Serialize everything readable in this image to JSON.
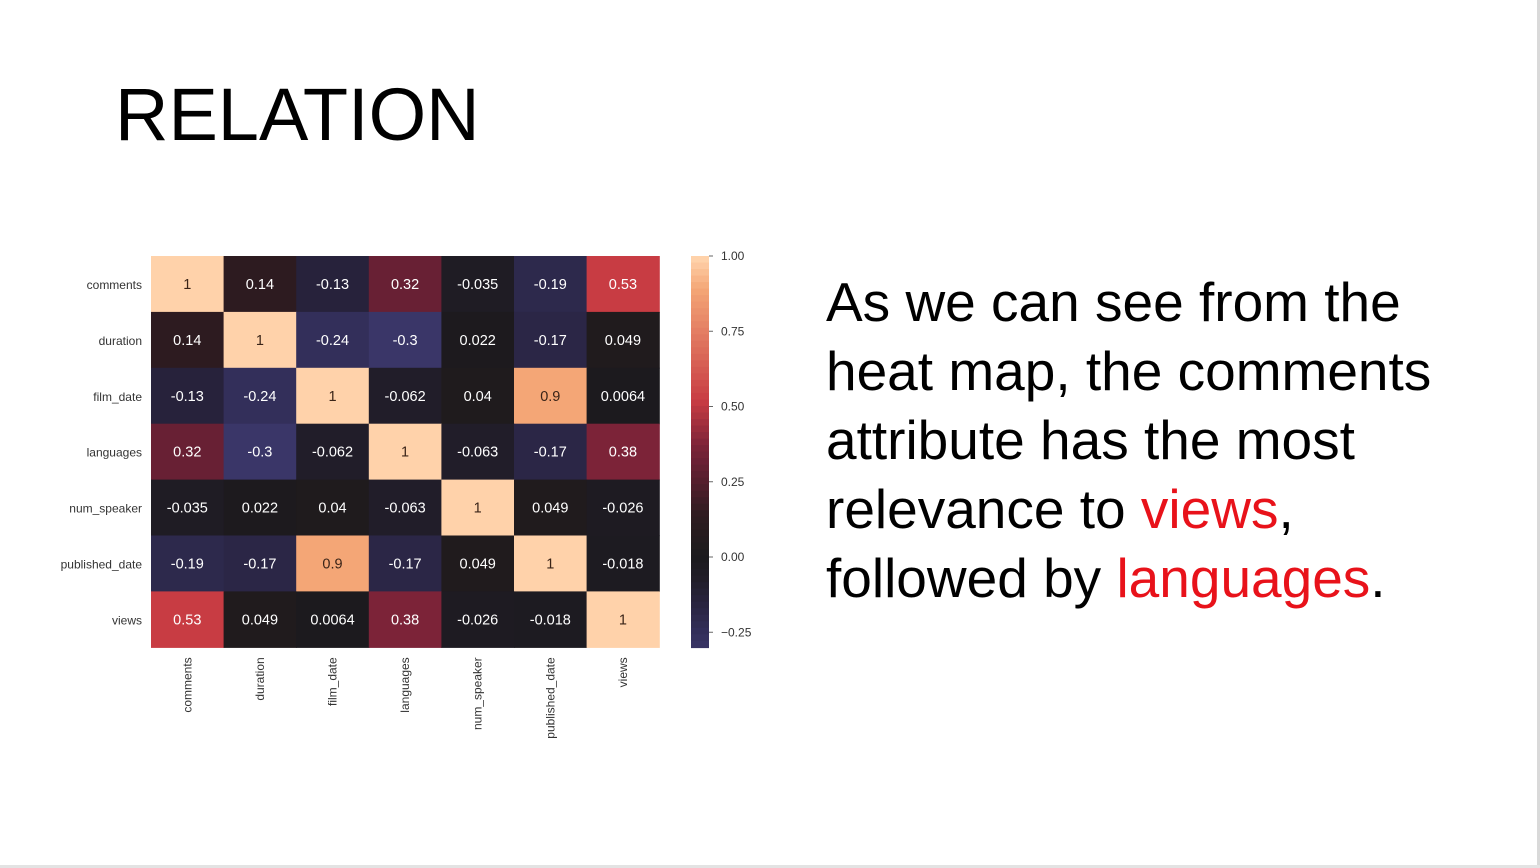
{
  "slide": {
    "title": "RELATION",
    "body": {
      "part1": "As we can see from the heat map, the comments attribute has the most relevance to ",
      "hl1": "views",
      "part2": ", followed by ",
      "hl2": "languages",
      "part3": ".",
      "highlight_color": "#e8121a"
    }
  },
  "chart_data": {
    "type": "heatmap",
    "variables": [
      "comments",
      "duration",
      "film_date",
      "languages",
      "num_speaker",
      "published_date",
      "views"
    ],
    "row_labels": [
      "comments",
      "duration",
      "film_date",
      "languages",
      "num_speaker",
      "published_date",
      "views"
    ],
    "col_labels": [
      "comments",
      "duration",
      "film_date",
      "languages",
      "num_speaker",
      "published_date",
      "views"
    ],
    "values": [
      [
        1,
        0.14,
        -0.13,
        0.32,
        -0.035,
        -0.19,
        0.53
      ],
      [
        0.14,
        1,
        -0.24,
        -0.3,
        0.022,
        -0.17,
        0.049
      ],
      [
        -0.13,
        -0.24,
        1,
        -0.062,
        0.04,
        0.9,
        0.0064
      ],
      [
        0.32,
        -0.3,
        -0.062,
        1,
        -0.063,
        -0.17,
        0.38
      ],
      [
        -0.035,
        0.022,
        0.04,
        -0.063,
        1,
        0.049,
        -0.026
      ],
      [
        -0.19,
        -0.17,
        0.9,
        -0.17,
        0.049,
        1,
        -0.018
      ],
      [
        0.53,
        0.049,
        0.0064,
        0.38,
        -0.026,
        -0.018,
        1
      ]
    ],
    "annotations": [
      [
        "1",
        "0.14",
        "-0.13",
        "0.32",
        "-0.035",
        "-0.19",
        "0.53"
      ],
      [
        "0.14",
        "1",
        "-0.24",
        "-0.3",
        "0.022",
        "-0.17",
        "0.049"
      ],
      [
        "-0.13",
        "-0.24",
        "1",
        "-0.062",
        "0.04",
        "0.9",
        "0.0064"
      ],
      [
        "0.32",
        "-0.3",
        "-0.062",
        "1",
        "-0.063",
        "-0.17",
        "0.38"
      ],
      [
        "-0.035",
        "0.022",
        "0.04",
        "-0.063",
        "1",
        "0.049",
        "-0.026"
      ],
      [
        "-0.19",
        "-0.17",
        "0.9",
        "-0.17",
        "0.049",
        "1",
        "-0.018"
      ],
      [
        "0.53",
        "0.049",
        "0.0064",
        "0.38",
        "-0.026",
        "-0.018",
        "1"
      ]
    ],
    "colorbar": {
      "range": [
        -0.3,
        1.0
      ],
      "center": 0,
      "ticks": [
        1.0,
        0.75,
        0.5,
        0.25,
        0.0,
        -0.25
      ],
      "tick_labels": [
        "1.00",
        "0.75",
        "0.50",
        "0.25",
        "0.00",
        "−0.25"
      ],
      "colormap": "icefire (dark center)"
    },
    "title": "",
    "xlabel": "",
    "ylabel": "",
    "grid": false
  }
}
